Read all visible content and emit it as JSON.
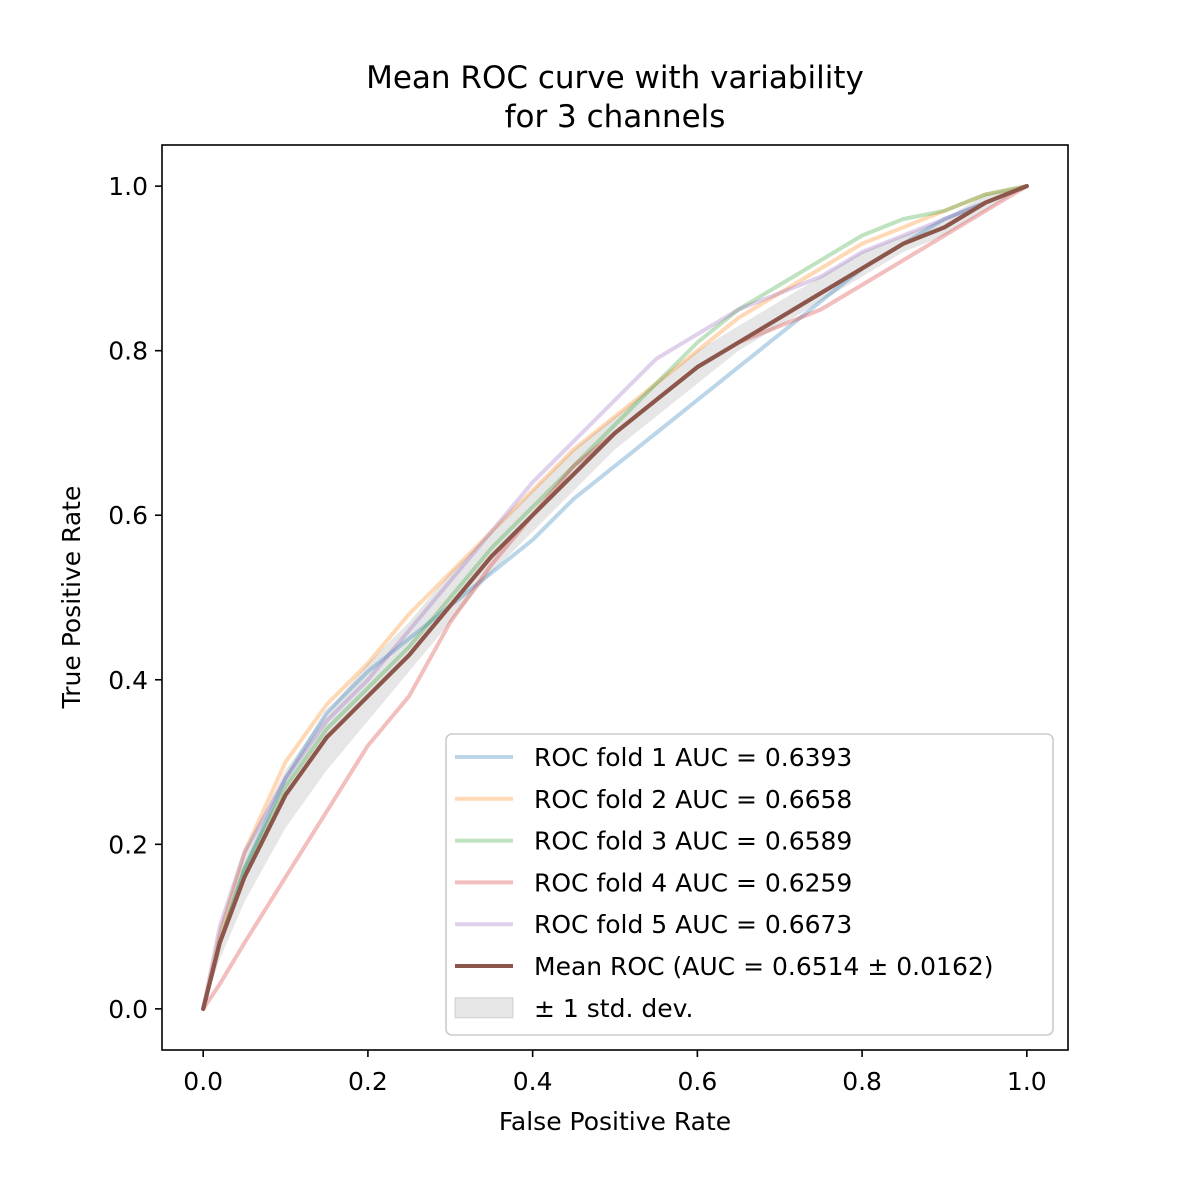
{
  "chart_data": {
    "type": "line",
    "title_line1": "Mean ROC curve with variability",
    "title_line2": "for 3 channels",
    "xlabel": "False Positive Rate",
    "ylabel": "True Positive Rate",
    "xlim": [
      -0.05,
      1.05
    ],
    "ylim": [
      -0.05,
      1.05
    ],
    "xticks": [
      {
        "value": 0.0,
        "label": "0.0"
      },
      {
        "value": 0.2,
        "label": "0.2"
      },
      {
        "value": 0.4,
        "label": "0.4"
      },
      {
        "value": 0.6,
        "label": "0.6"
      },
      {
        "value": 0.8,
        "label": "0.8"
      },
      {
        "value": 1.0,
        "label": "1.0"
      }
    ],
    "yticks": [
      {
        "value": 0.0,
        "label": "0.0"
      },
      {
        "value": 0.2,
        "label": "0.2"
      },
      {
        "value": 0.4,
        "label": "0.4"
      },
      {
        "value": 0.6,
        "label": "0.6"
      },
      {
        "value": 0.8,
        "label": "0.8"
      },
      {
        "value": 1.0,
        "label": "1.0"
      }
    ],
    "grid": false,
    "legend_position": "lower-right",
    "series": [
      {
        "name": "ROC fold 1 AUC = 0.6393",
        "color": "#1f77b4",
        "opacity": 0.3,
        "x": [
          0,
          0.02,
          0.05,
          0.1,
          0.15,
          0.2,
          0.25,
          0.3,
          0.35,
          0.4,
          0.45,
          0.5,
          0.55,
          0.6,
          0.65,
          0.7,
          0.75,
          0.8,
          0.85,
          0.9,
          0.95,
          1.0
        ],
        "y": [
          0,
          0.08,
          0.17,
          0.28,
          0.36,
          0.41,
          0.45,
          0.49,
          0.53,
          0.57,
          0.62,
          0.66,
          0.7,
          0.74,
          0.78,
          0.82,
          0.86,
          0.9,
          0.93,
          0.96,
          0.98,
          1.0
        ]
      },
      {
        "name": "ROC fold 2 AUC = 0.6658",
        "color": "#ff7f0e",
        "opacity": 0.3,
        "x": [
          0,
          0.02,
          0.05,
          0.1,
          0.15,
          0.2,
          0.25,
          0.3,
          0.35,
          0.4,
          0.45,
          0.5,
          0.55,
          0.6,
          0.65,
          0.7,
          0.75,
          0.8,
          0.85,
          0.9,
          0.95,
          1.0
        ],
        "y": [
          0,
          0.09,
          0.19,
          0.3,
          0.37,
          0.42,
          0.48,
          0.53,
          0.58,
          0.63,
          0.68,
          0.72,
          0.76,
          0.8,
          0.84,
          0.87,
          0.9,
          0.93,
          0.95,
          0.97,
          0.99,
          1.0
        ]
      },
      {
        "name": "ROC fold 3 AUC = 0.6589",
        "color": "#2ca02c",
        "opacity": 0.3,
        "x": [
          0,
          0.02,
          0.05,
          0.1,
          0.15,
          0.2,
          0.25,
          0.3,
          0.35,
          0.4,
          0.45,
          0.5,
          0.55,
          0.6,
          0.65,
          0.7,
          0.75,
          0.8,
          0.85,
          0.9,
          0.95,
          1.0
        ],
        "y": [
          0,
          0.08,
          0.17,
          0.27,
          0.34,
          0.39,
          0.44,
          0.5,
          0.56,
          0.61,
          0.66,
          0.71,
          0.76,
          0.81,
          0.85,
          0.88,
          0.91,
          0.94,
          0.96,
          0.97,
          0.99,
          1.0
        ]
      },
      {
        "name": "ROC fold 4 AUC = 0.6259",
        "color": "#d62728",
        "opacity": 0.3,
        "x": [
          0,
          0.02,
          0.05,
          0.1,
          0.15,
          0.2,
          0.25,
          0.3,
          0.35,
          0.4,
          0.45,
          0.5,
          0.55,
          0.6,
          0.65,
          0.7,
          0.75,
          0.8,
          0.85,
          0.9,
          0.95,
          1.0
        ],
        "y": [
          0,
          0.03,
          0.08,
          0.16,
          0.24,
          0.32,
          0.38,
          0.47,
          0.54,
          0.6,
          0.66,
          0.7,
          0.74,
          0.78,
          0.81,
          0.83,
          0.85,
          0.88,
          0.91,
          0.94,
          0.97,
          1.0
        ]
      },
      {
        "name": "ROC fold 5 AUC = 0.6673",
        "color": "#9467bd",
        "opacity": 0.3,
        "x": [
          0,
          0.02,
          0.05,
          0.1,
          0.15,
          0.2,
          0.25,
          0.3,
          0.35,
          0.4,
          0.45,
          0.5,
          0.55,
          0.6,
          0.65,
          0.7,
          0.75,
          0.8,
          0.85,
          0.9,
          0.95,
          1.0
        ],
        "y": [
          0,
          0.1,
          0.19,
          0.28,
          0.35,
          0.4,
          0.46,
          0.52,
          0.58,
          0.64,
          0.69,
          0.74,
          0.79,
          0.82,
          0.85,
          0.87,
          0.89,
          0.92,
          0.94,
          0.96,
          0.98,
          1.0
        ]
      },
      {
        "name": "Mean ROC (AUC = 0.6514 ± 0.0162)",
        "color": "#8c564b",
        "opacity": 1.0,
        "thick": true,
        "x": [
          0,
          0.02,
          0.05,
          0.1,
          0.15,
          0.2,
          0.25,
          0.3,
          0.35,
          0.4,
          0.45,
          0.5,
          0.55,
          0.6,
          0.65,
          0.7,
          0.75,
          0.8,
          0.85,
          0.9,
          0.95,
          1.0
        ],
        "y": [
          0,
          0.08,
          0.16,
          0.26,
          0.33,
          0.38,
          0.43,
          0.49,
          0.55,
          0.6,
          0.65,
          0.7,
          0.74,
          0.78,
          0.81,
          0.84,
          0.87,
          0.9,
          0.93,
          0.95,
          0.98,
          1.0
        ]
      }
    ],
    "band": {
      "name": "± 1 std. dev.",
      "color": "#808080",
      "opacity": 0.2,
      "x": [
        0,
        0.02,
        0.05,
        0.1,
        0.15,
        0.2,
        0.25,
        0.3,
        0.35,
        0.4,
        0.45,
        0.5,
        0.55,
        0.6,
        0.65,
        0.7,
        0.75,
        0.8,
        0.85,
        0.9,
        0.95,
        1.0
      ],
      "lower": [
        0,
        0.06,
        0.13,
        0.22,
        0.29,
        0.35,
        0.41,
        0.47,
        0.53,
        0.58,
        0.63,
        0.68,
        0.72,
        0.76,
        0.8,
        0.83,
        0.86,
        0.89,
        0.92,
        0.94,
        0.97,
        1.0
      ],
      "upper": [
        0,
        0.1,
        0.19,
        0.29,
        0.36,
        0.42,
        0.47,
        0.53,
        0.58,
        0.63,
        0.68,
        0.72,
        0.76,
        0.8,
        0.83,
        0.86,
        0.89,
        0.92,
        0.94,
        0.96,
        0.99,
        1.0
      ]
    }
  }
}
